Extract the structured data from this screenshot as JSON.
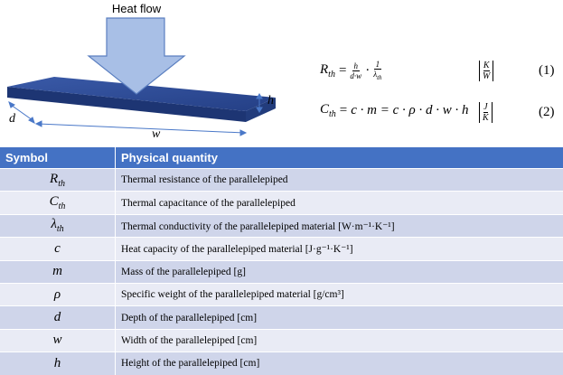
{
  "diagram": {
    "heat_label": "Heat flow",
    "h_label": "h",
    "d_label": "d",
    "w_label": "w"
  },
  "equations": [
    {
      "symbol": "R",
      "symbol_sub": "th",
      "equals": "=",
      "frac1_num": "h",
      "frac1_den": "d·w",
      "dot": "·",
      "frac2_num": "1",
      "frac2_den": "λ",
      "frac2_den_sub": "th",
      "unit_num": "K",
      "unit_den": "W",
      "number": "(1)"
    },
    {
      "symbol": "C",
      "symbol_sub": "th",
      "equals": "=",
      "rhs": "c · m = c · ρ · d · w · h",
      "unit_num": "J",
      "unit_den": "K",
      "number": "(2)"
    }
  ],
  "table": {
    "header": [
      "Symbol",
      "Physical quantity"
    ],
    "rows": [
      {
        "symbol": "R",
        "sub": "th",
        "quantity": "Thermal resistance of the parallelepiped"
      },
      {
        "symbol": "C",
        "sub": "th",
        "quantity": "Thermal capacitance of the parallelepiped"
      },
      {
        "symbol": "λ",
        "sub": "th",
        "quantity": "Thermal conductivity of the parallelepiped material [W·m⁻¹·K⁻¹]"
      },
      {
        "symbol": "c",
        "quantity": "Heat capacity of the parallelepiped material [J·g⁻¹·K⁻¹]"
      },
      {
        "symbol": "m",
        "quantity": "Mass of the parallelepiped [g]"
      },
      {
        "symbol": "ρ",
        "quantity": "Specific weight of the parallelepiped material [g/cm³]"
      },
      {
        "symbol": "d",
        "quantity": "Depth of the parallelepiped [cm]"
      },
      {
        "symbol": "w",
        "quantity": "Width of the parallelepiped [cm]"
      },
      {
        "symbol": "h",
        "quantity": "Height of the parallelepiped [cm]"
      }
    ]
  }
}
